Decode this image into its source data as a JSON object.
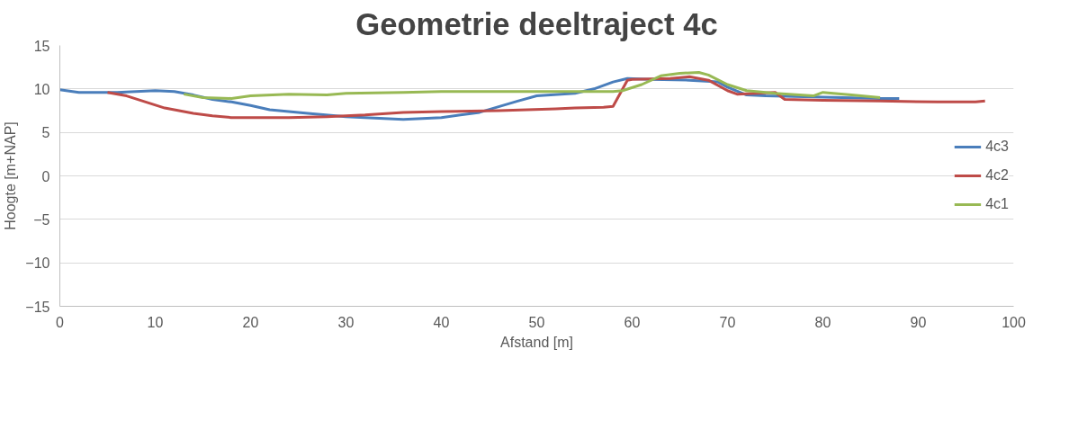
{
  "chart_data": {
    "type": "line",
    "title": "Geometrie deeltraject 4c",
    "xlabel": "Afstand [m]",
    "ylabel": "Hoogte [m+NAP]",
    "xlim": [
      0,
      100
    ],
    "xticks": [
      0,
      10,
      20,
      30,
      40,
      50,
      60,
      70,
      80,
      90,
      100
    ],
    "ylim": [
      -15,
      15
    ],
    "yticks": [
      -15,
      -10,
      -5,
      0,
      5,
      10,
      15
    ],
    "grid": "y",
    "legend": "right",
    "marker": "none",
    "line_style": "solid",
    "series": [
      {
        "name": "4c3",
        "color": "#4a7ebb",
        "x": [
          0,
          2,
          6,
          8,
          10,
          12,
          14,
          16,
          18,
          20,
          22,
          26,
          30,
          34,
          36,
          40,
          44,
          48,
          50,
          54,
          56,
          58,
          59.5,
          62,
          66,
          69,
          70,
          72,
          74,
          78,
          82,
          86,
          88
        ],
        "values": [
          9.9,
          9.6,
          9.6,
          9.7,
          9.8,
          9.7,
          9.3,
          8.8,
          8.5,
          8.1,
          7.6,
          7.2,
          6.8,
          6.6,
          6.5,
          6.7,
          7.3,
          8.6,
          9.2,
          9.5,
          10.0,
          10.8,
          11.2,
          11.1,
          11.0,
          10.8,
          10.2,
          9.3,
          9.2,
          9.1,
          9.0,
          8.9,
          8.9
        ]
      },
      {
        "name": "4c2",
        "color": "#be4b48",
        "x": [
          5,
          7,
          9,
          11,
          14,
          16,
          18,
          24,
          28,
          32,
          36,
          40,
          46,
          52,
          54,
          57,
          58,
          59.5,
          60,
          64,
          66,
          68,
          70,
          71,
          75,
          76,
          80,
          86,
          92,
          96,
          97
        ],
        "values": [
          9.6,
          9.2,
          8.5,
          7.8,
          7.2,
          6.9,
          6.7,
          6.7,
          6.8,
          7.0,
          7.3,
          7.4,
          7.5,
          7.7,
          7.8,
          7.9,
          8.0,
          11.0,
          11.1,
          11.2,
          11.4,
          11.0,
          9.8,
          9.4,
          9.6,
          8.8,
          8.7,
          8.6,
          8.5,
          8.5,
          8.6
        ]
      },
      {
        "name": "4c1",
        "color": "#98b954",
        "x": [
          13,
          15,
          18,
          20,
          24,
          28,
          30,
          36,
          40,
          58,
          59,
          61,
          63,
          65,
          67,
          68,
          70,
          72,
          75,
          79,
          80,
          83,
          86
        ],
        "values": [
          9.4,
          9.0,
          8.9,
          9.2,
          9.4,
          9.3,
          9.5,
          9.6,
          9.7,
          9.7,
          9.8,
          10.5,
          11.5,
          11.8,
          11.9,
          11.6,
          10.5,
          9.8,
          9.5,
          9.2,
          9.6,
          9.3,
          9.0
        ]
      }
    ]
  }
}
